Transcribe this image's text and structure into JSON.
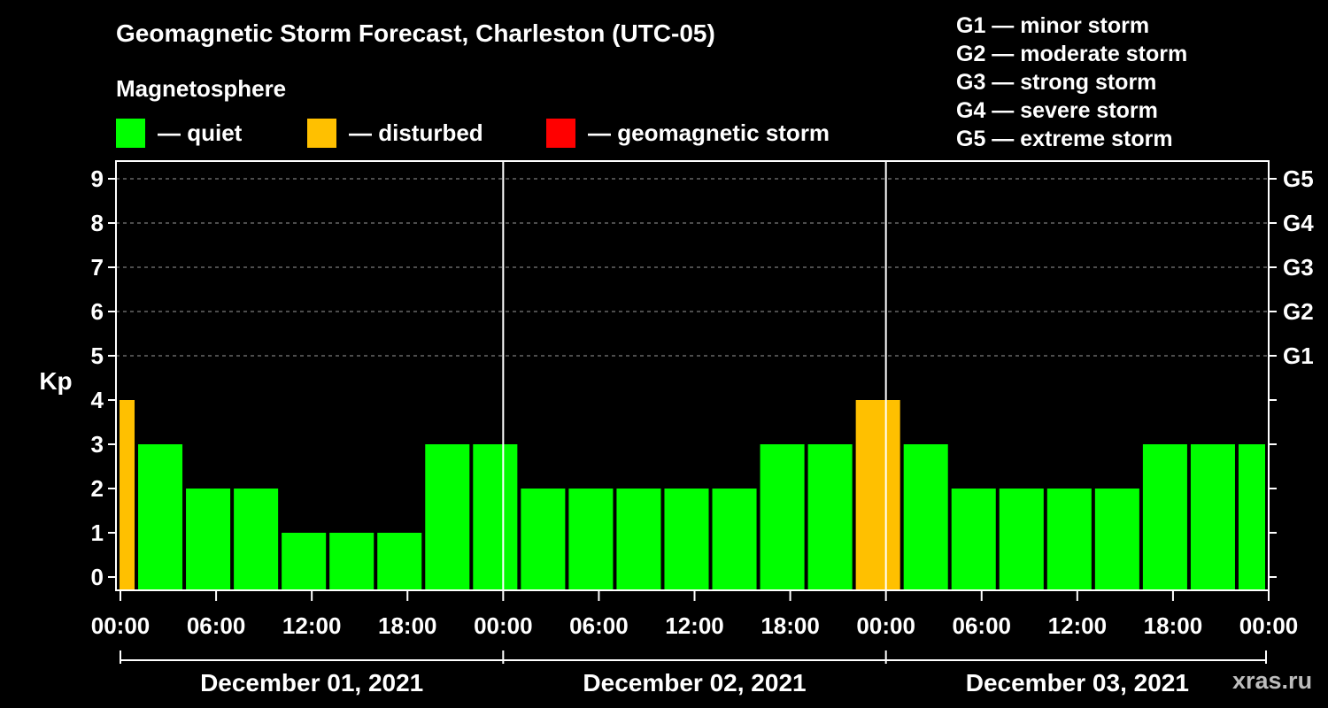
{
  "title": "Geomagnetic Storm Forecast, Charleston (UTC-05)",
  "subtitle": "Magnetosphere",
  "legend": [
    {
      "label": "— quiet",
      "color": "#00ff00"
    },
    {
      "label": "— disturbed",
      "color": "#ffc000"
    },
    {
      "label": "— geomagnetic storm",
      "color": "#ff0000"
    }
  ],
  "storm_levels": [
    "G1 — minor storm",
    "G2 — moderate storm",
    "G3 — strong storm",
    "G4 — severe storm",
    "G5 — extreme storm"
  ],
  "watermark": "xras.ru",
  "chart_data": {
    "type": "bar",
    "title": "Geomagnetic Storm Forecast, Charleston (UTC-05)",
    "ylabel": "Kp",
    "ylim": [
      0,
      9
    ],
    "y_ticks": [
      "0",
      "1",
      "2",
      "3",
      "4",
      "5",
      "6",
      "7",
      "8",
      "9"
    ],
    "right_ticks": [
      {
        "kp": 5,
        "label": "G1"
      },
      {
        "kp": 6,
        "label": "G2"
      },
      {
        "kp": 7,
        "label": "G3"
      },
      {
        "kp": 8,
        "label": "G4"
      },
      {
        "kp": 9,
        "label": "G5"
      }
    ],
    "x_range_hours": [
      -1,
      72
    ],
    "x_ticks": [
      {
        "hour": 0,
        "label": "00:00"
      },
      {
        "hour": 6,
        "label": "06:00"
      },
      {
        "hour": 12,
        "label": "12:00"
      },
      {
        "hour": 18,
        "label": "18:00"
      },
      {
        "hour": 24,
        "label": "00:00"
      },
      {
        "hour": 30,
        "label": "06:00"
      },
      {
        "hour": 36,
        "label": "12:00"
      },
      {
        "hour": 42,
        "label": "18:00"
      },
      {
        "hour": 48,
        "label": "00:00"
      },
      {
        "hour": 54,
        "label": "06:00"
      },
      {
        "hour": 60,
        "label": "12:00"
      },
      {
        "hour": 66,
        "label": "18:00"
      },
      {
        "hour": 72,
        "label": "00:00"
      }
    ],
    "day_separators_hours": [
      24,
      48
    ],
    "days": [
      {
        "label": "December 01, 2021",
        "start_hour": 0,
        "end_hour": 24
      },
      {
        "label": "December 02, 2021",
        "start_hour": 24,
        "end_hour": 48
      },
      {
        "label": "December 03, 2021",
        "start_hour": 48,
        "end_hour": 72
      }
    ],
    "bars": [
      {
        "start_hour": -1,
        "end_hour": 1,
        "kp": 4,
        "status": "disturbed"
      },
      {
        "start_hour": 1,
        "end_hour": 4,
        "kp": 3,
        "status": "quiet"
      },
      {
        "start_hour": 4,
        "end_hour": 7,
        "kp": 2,
        "status": "quiet"
      },
      {
        "start_hour": 7,
        "end_hour": 10,
        "kp": 2,
        "status": "quiet"
      },
      {
        "start_hour": 10,
        "end_hour": 13,
        "kp": 1,
        "status": "quiet"
      },
      {
        "start_hour": 13,
        "end_hour": 16,
        "kp": 1,
        "status": "quiet"
      },
      {
        "start_hour": 16,
        "end_hour": 19,
        "kp": 1,
        "status": "quiet"
      },
      {
        "start_hour": 19,
        "end_hour": 22,
        "kp": 3,
        "status": "quiet"
      },
      {
        "start_hour": 22,
        "end_hour": 25,
        "kp": 3,
        "status": "quiet"
      },
      {
        "start_hour": 25,
        "end_hour": 28,
        "kp": 2,
        "status": "quiet"
      },
      {
        "start_hour": 28,
        "end_hour": 31,
        "kp": 2,
        "status": "quiet"
      },
      {
        "start_hour": 31,
        "end_hour": 34,
        "kp": 2,
        "status": "quiet"
      },
      {
        "start_hour": 34,
        "end_hour": 37,
        "kp": 2,
        "status": "quiet"
      },
      {
        "start_hour": 37,
        "end_hour": 40,
        "kp": 2,
        "status": "quiet"
      },
      {
        "start_hour": 40,
        "end_hour": 43,
        "kp": 3,
        "status": "quiet"
      },
      {
        "start_hour": 43,
        "end_hour": 46,
        "kp": 3,
        "status": "quiet"
      },
      {
        "start_hour": 46,
        "end_hour": 49,
        "kp": 4,
        "status": "disturbed"
      },
      {
        "start_hour": 49,
        "end_hour": 52,
        "kp": 3,
        "status": "quiet"
      },
      {
        "start_hour": 52,
        "end_hour": 55,
        "kp": 2,
        "status": "quiet"
      },
      {
        "start_hour": 55,
        "end_hour": 58,
        "kp": 2,
        "status": "quiet"
      },
      {
        "start_hour": 58,
        "end_hour": 61,
        "kp": 2,
        "status": "quiet"
      },
      {
        "start_hour": 61,
        "end_hour": 64,
        "kp": 2,
        "status": "quiet"
      },
      {
        "start_hour": 64,
        "end_hour": 67,
        "kp": 3,
        "status": "quiet"
      },
      {
        "start_hour": 67,
        "end_hour": 70,
        "kp": 3,
        "status": "quiet"
      },
      {
        "start_hour": 70,
        "end_hour": 72,
        "kp": 3,
        "status": "quiet"
      }
    ],
    "status_colors": {
      "quiet": "#00ff00",
      "disturbed": "#ffc000",
      "storm": "#ff0000"
    }
  }
}
